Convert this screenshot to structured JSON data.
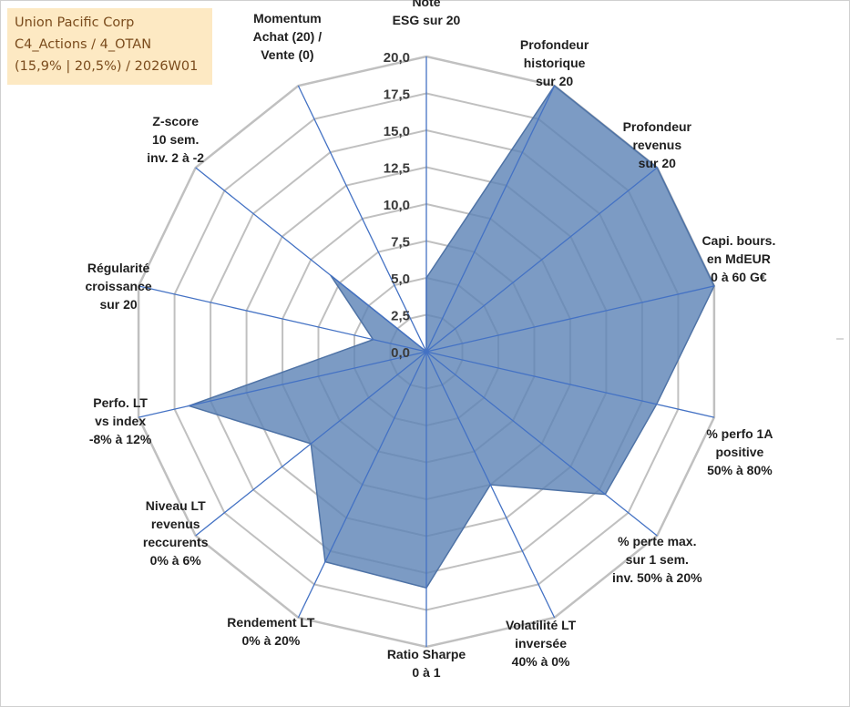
{
  "info_box": {
    "line1": "Union Pacific Corp",
    "line2": "C4_Actions / 4_OTAN",
    "line3": "(15,9% | 20,5%) / 2026W01"
  },
  "colors": {
    "grid": "#c0c0c0",
    "spoke": "#4472c4",
    "fill": "#5b82b5",
    "stroke": "#4f73a6",
    "info_bg": "#fde9c3",
    "info_text": "#7a4b1c"
  },
  "chart_data": {
    "type": "radar",
    "title": "",
    "rlim": [
      0,
      20
    ],
    "tick_values": [
      0,
      2.5,
      5,
      7.5,
      10,
      12.5,
      15,
      17.5,
      20
    ],
    "tick_labels": [
      "0,0",
      "2,5",
      "5,0",
      "7,5",
      "10,0",
      "12,5",
      "15,0",
      "17,5",
      "20,0"
    ],
    "grid": true,
    "axes": [
      {
        "label": [
          "Note",
          "ESG sur 20"
        ],
        "value": 5.0
      },
      {
        "label": [
          "Profondeur",
          "historique",
          "sur 20"
        ],
        "value": 20.0
      },
      {
        "label": [
          "Profondeur",
          "revenus",
          "sur 20"
        ],
        "value": 20.0
      },
      {
        "label": [
          "Capi. bours.",
          "en MdEUR",
          "0 à 60 G€"
        ],
        "value": 20.0
      },
      {
        "label": [
          "% perfo 1A",
          "positive",
          "50% à 80%"
        ],
        "value": 16.0
      },
      {
        "label": [
          "% perte max.",
          "sur 1 sem.",
          "inv. 50% à 20%"
        ],
        "value": 15.5
      },
      {
        "label": [
          "Volatilité LT",
          "inversée",
          "40% à 0%"
        ],
        "value": 10.0
      },
      {
        "label": [
          "Ratio Sharpe",
          "0 à 1"
        ],
        "value": 16.0
      },
      {
        "label": [
          "Rendement LT",
          "0% à 20%"
        ],
        "value": 15.8
      },
      {
        "label": [
          "Niveau LT",
          "revenus",
          "reccurents",
          "0% à 6%"
        ],
        "value": 10.0
      },
      {
        "label": [
          "Perfo. LT",
          "vs index",
          "-8% à 12%"
        ],
        "value": 16.5
      },
      {
        "label": [
          "Régularité",
          "croissance",
          "sur 20"
        ],
        "value": 3.7
      },
      {
        "label": [
          "Z-score",
          "10 sem.",
          "inv. 2 à -2"
        ],
        "value": 8.3
      },
      {
        "label": [
          "Momentum",
          "Achat (20) /",
          "Vente (0)"
        ],
        "value": 0.0
      }
    ]
  }
}
